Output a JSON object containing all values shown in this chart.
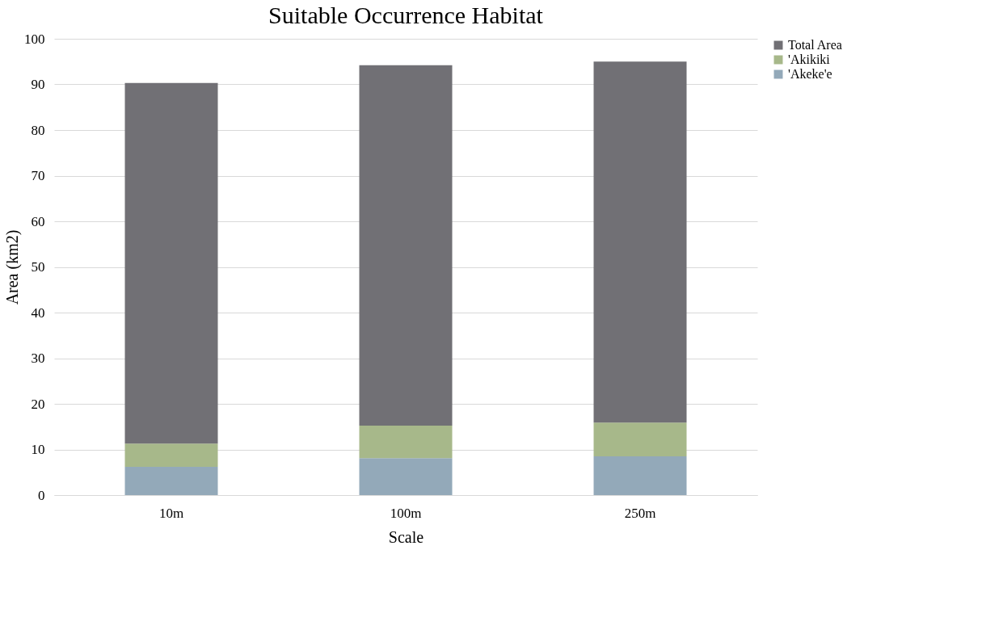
{
  "chart_data": {
    "type": "bar",
    "title": "Suitable Occurrence Habitat",
    "xlabel": "Scale",
    "ylabel": "Area (km2)",
    "categories": [
      "10m",
      "100m",
      "250m"
    ],
    "stacked": true,
    "series": [
      {
        "name": "'Akeke'e",
        "color": "#93a9b9",
        "values": [
          6.2,
          8.1,
          8.5
        ]
      },
      {
        "name": "'Akikiki",
        "color": "#a7b88a",
        "values": [
          5.1,
          7.1,
          7.4
        ]
      },
      {
        "name": "Total Area",
        "color": "#717075",
        "values": [
          79.0,
          79.0,
          79.1
        ]
      }
    ],
    "ylim": [
      0,
      100
    ],
    "yticks": [
      0,
      10,
      20,
      30,
      40,
      50,
      60,
      70,
      80,
      90,
      100
    ],
    "grid": "y",
    "legend": "right"
  }
}
